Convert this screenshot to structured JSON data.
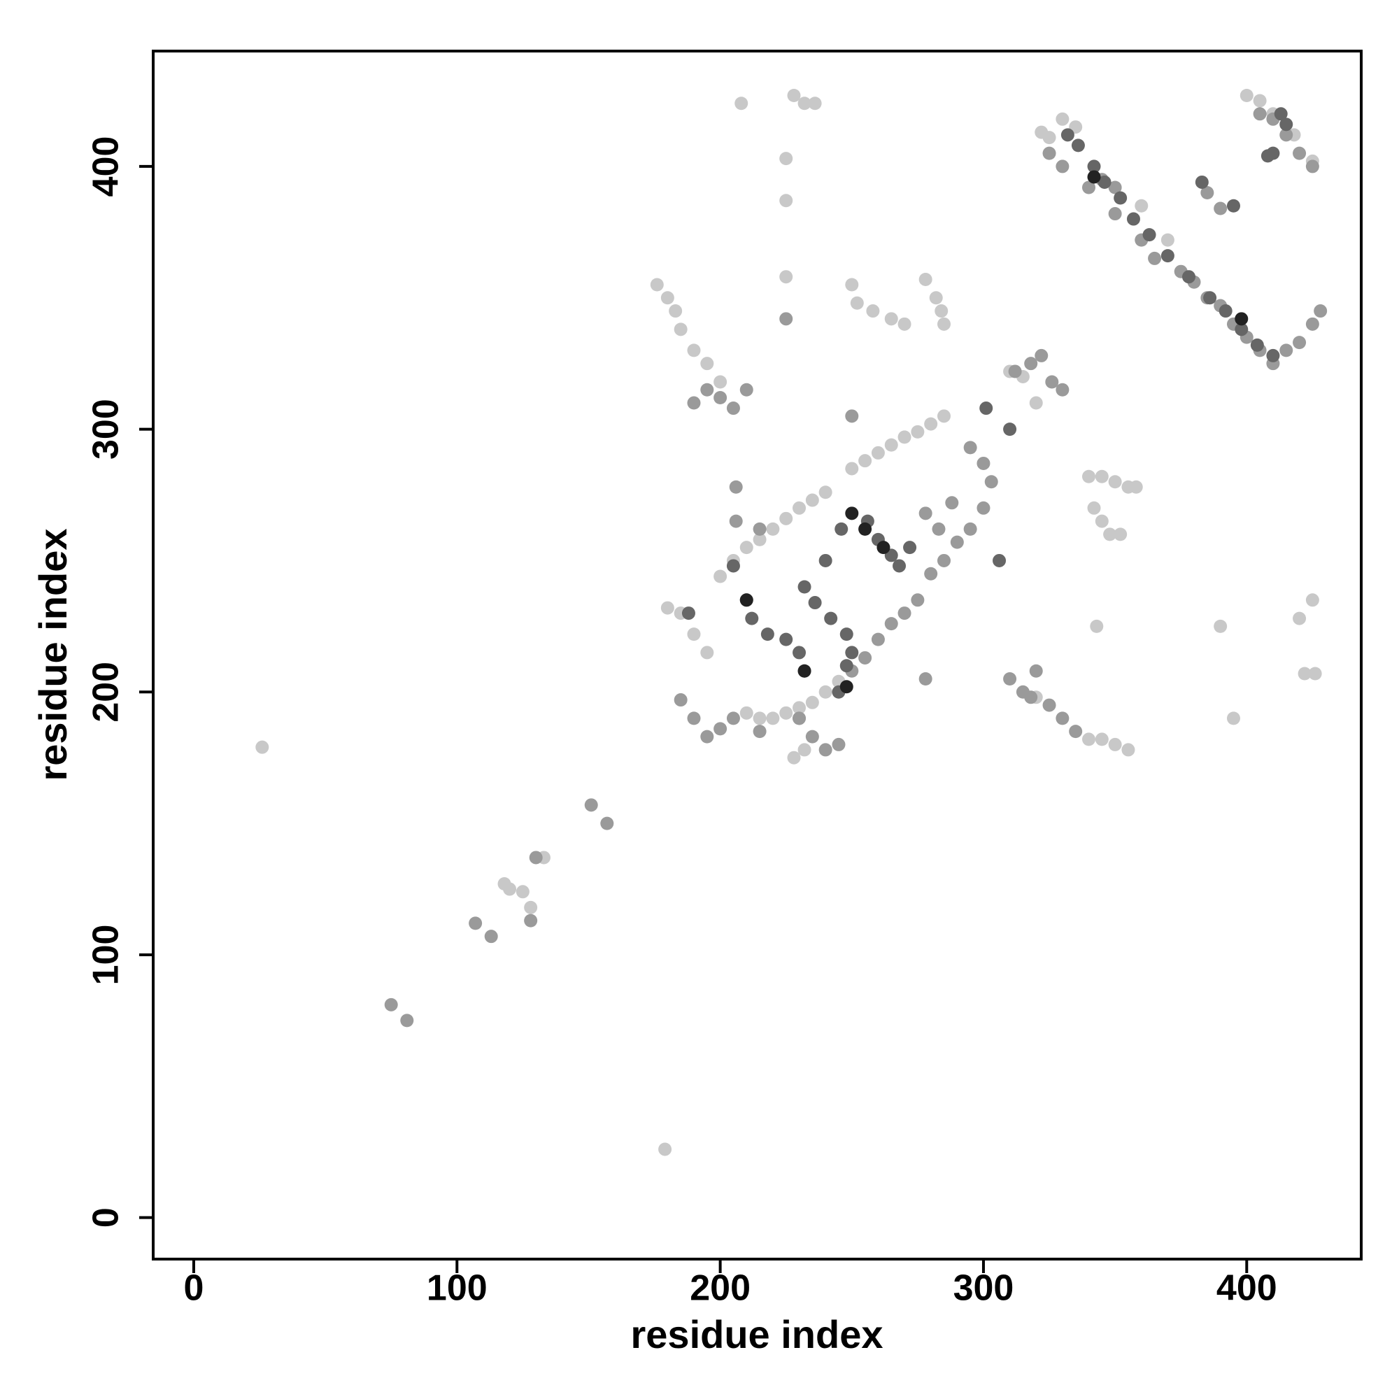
{
  "chart_data": {
    "type": "scatter",
    "x_label": "residue index",
    "y_label": "residue index",
    "xlim": [
      -15.4,
      443.5
    ],
    "ylim": [
      -15.8,
      443.9
    ],
    "xticks": [
      0,
      100,
      200,
      300,
      400
    ],
    "yticks": [
      0,
      100,
      200,
      300,
      400
    ],
    "series": [
      {
        "color": "#c8c8c8",
        "x": [
          26,
          179,
          118,
          120,
          125,
          128,
          133,
          176,
          180,
          183,
          185,
          190,
          195,
          200,
          208,
          225,
          225,
          225,
          228,
          232,
          236,
          250,
          252,
          258,
          265,
          270,
          278,
          282,
          284,
          285,
          322,
          325,
          320,
          345,
          350,
          355,
          340,
          342,
          345,
          348,
          352,
          358,
          343,
          390,
          420,
          425,
          422,
          426,
          340,
          345,
          350,
          355,
          400,
          405,
          410,
          418,
          425,
          330,
          335,
          345,
          360,
          370,
          200,
          205,
          210,
          215,
          220,
          225,
          230,
          235,
          240,
          250,
          255,
          260,
          265,
          270,
          275,
          280,
          285,
          210,
          215,
          220,
          225,
          230,
          235,
          240,
          245,
          228,
          232,
          180,
          185,
          190,
          195,
          310,
          315,
          320,
          395
        ],
        "y": [
          179,
          26,
          127,
          125,
          124,
          118,
          137,
          355,
          350,
          345,
          338,
          330,
          325,
          318,
          424,
          403,
          387,
          358,
          427,
          424,
          424,
          355,
          348,
          345,
          342,
          340,
          357,
          350,
          345,
          340,
          413,
          411,
          310,
          282,
          280,
          278,
          282,
          270,
          265,
          260,
          260,
          278,
          225,
          225,
          228,
          235,
          207,
          207,
          182,
          182,
          180,
          178,
          427,
          425,
          420,
          412,
          402,
          418,
          415,
          395,
          385,
          372,
          244,
          250,
          255,
          258,
          262,
          266,
          270,
          273,
          276,
          285,
          288,
          291,
          294,
          297,
          299,
          302,
          305,
          192,
          190,
          190,
          192,
          194,
          196,
          200,
          204,
          175,
          178,
          232,
          230,
          222,
          215,
          322,
          320,
          198,
          190
        ]
      },
      {
        "color": "#9a9a9a",
        "x": [
          75,
          81,
          107,
          113,
          128,
          130,
          151,
          157,
          190,
          195,
          200,
          205,
          210,
          185,
          190,
          195,
          200,
          205,
          215,
          230,
          235,
          240,
          245,
          250,
          255,
          260,
          265,
          270,
          275,
          280,
          285,
          290,
          295,
          300,
          303,
          300,
          295,
          310,
          315,
          320,
          318,
          325,
          330,
          335,
          312,
          318,
          322,
          326,
          330,
          345,
          350,
          325,
          330,
          340,
          350,
          360,
          365,
          375,
          380,
          385,
          390,
          395,
          400,
          405,
          410,
          415,
          420,
          425,
          428,
          405,
          410,
          415,
          420,
          425,
          385,
          390,
          250,
          278,
          206,
          225,
          230,
          278,
          283,
          288,
          206,
          215
        ],
        "y": [
          81,
          75,
          112,
          107,
          113,
          137,
          157,
          150,
          310,
          315,
          312,
          308,
          315,
          197,
          190,
          183,
          186,
          190,
          185,
          190,
          183,
          178,
          180,
          208,
          213,
          220,
          226,
          230,
          235,
          245,
          250,
          257,
          262,
          270,
          280,
          287,
          293,
          205,
          200,
          208,
          198,
          195,
          190,
          185,
          322,
          325,
          328,
          318,
          315,
          395,
          392,
          405,
          400,
          392,
          382,
          372,
          365,
          360,
          356,
          350,
          347,
          340,
          335,
          330,
          325,
          330,
          333,
          340,
          345,
          420,
          418,
          412,
          405,
          400,
          390,
          384,
          305,
          205,
          278,
          342,
          190,
          268,
          262,
          272,
          265,
          262
        ]
      },
      {
        "color": "#666666",
        "x": [
          188,
          205,
          210,
          212,
          218,
          225,
          230,
          232,
          245,
          248,
          250,
          248,
          242,
          236,
          232,
          240,
          246,
          256,
          260,
          265,
          268,
          272,
          306,
          301,
          310,
          332,
          336,
          342,
          346,
          352,
          357,
          363,
          370,
          378,
          386,
          392,
          398,
          404,
          410,
          413,
          410,
          415,
          408,
          383,
          395
        ],
        "y": [
          230,
          248,
          235,
          228,
          222,
          220,
          215,
          208,
          200,
          210,
          215,
          222,
          228,
          234,
          240,
          250,
          262,
          265,
          258,
          252,
          248,
          255,
          250,
          308,
          300,
          412,
          408,
          400,
          394,
          388,
          380,
          374,
          366,
          358,
          350,
          345,
          338,
          332,
          328,
          420,
          405,
          416,
          404,
          394,
          385
        ]
      },
      {
        "color": "#222222",
        "x": [
          210,
          232,
          250,
          255,
          262,
          342,
          398,
          248
        ],
        "y": [
          235,
          208,
          268,
          262,
          255,
          396,
          342,
          202
        ]
      }
    ]
  }
}
